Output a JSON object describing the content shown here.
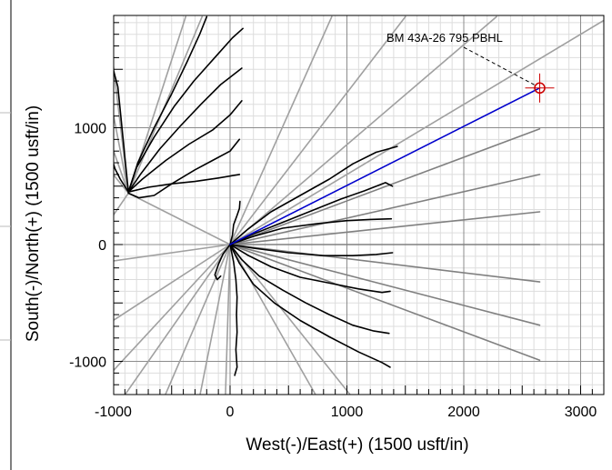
{
  "chart_data": {
    "type": "line",
    "title": "",
    "xlabel": "West(-)/East(+) (1500 usft/in)",
    "ylabel": "South(-)/North(+) (1500 usft/in)",
    "xlim": [
      -1000,
      3200
    ],
    "ylim": [
      -1300,
      1950
    ],
    "x_ticks": [
      -1000,
      0,
      1000,
      2000,
      3000
    ],
    "y_ticks": [
      -1000,
      0,
      1000
    ],
    "x_tick_labels": [
      "-1000",
      "0",
      "1000",
      "2000",
      "3000"
    ],
    "y_tick_labels": [
      "-1000",
      "0",
      "1000"
    ],
    "grid": "major and minor",
    "colors": {
      "target": "#cc0000",
      "planned": "#0000cc",
      "offset_wells": "#000000",
      "projections_light": "#a0a0a0",
      "projections_dark": "#808080",
      "grid_major": "#8c8c8c",
      "grid_minor": "#dddddd"
    },
    "target": {
      "label": "BM 43A-26 795 PBHL",
      "x": 2650,
      "y": 1340
    },
    "planned_well": {
      "x": [
        0,
        2650
      ],
      "y": [
        0,
        1340
      ]
    },
    "projection_lines_light": [
      {
        "x": [
          0,
          3200
        ],
        "y": [
          0,
          1920
        ]
      },
      {
        "x": [
          0,
          2280
        ],
        "y": [
          0,
          1950
        ]
      },
      {
        "x": [
          0,
          1500
        ],
        "y": [
          0,
          1950
        ]
      },
      {
        "x": [
          0,
          870
        ],
        "y": [
          0,
          1950
        ]
      },
      {
        "x": [
          0,
          -1000
        ],
        "y": [
          0,
          -140
        ]
      },
      {
        "x": [
          0,
          -1000
        ],
        "y": [
          0,
          -650
        ]
      },
      {
        "x": [
          0,
          -1000
        ],
        "y": [
          0,
          -1080
        ]
      },
      {
        "x": [
          0,
          -910
        ],
        "y": [
          0,
          -1300
        ]
      },
      {
        "x": [
          0,
          -560
        ],
        "y": [
          0,
          -1300
        ]
      },
      {
        "x": [
          0,
          -260
        ],
        "y": [
          0,
          -1300
        ]
      },
      {
        "x": [
          0,
          -40
        ],
        "y": [
          0,
          -1300
        ]
      },
      {
        "x": [
          0,
          740
        ],
        "y": [
          0,
          -1300
        ]
      },
      {
        "x": [
          0,
          1040
        ],
        "y": [
          0,
          -1300
        ]
      },
      {
        "x": [
          0,
          -870
        ],
        "y": [
          0,
          440
        ]
      },
      {
        "x": [
          -870,
          -1000
        ],
        "y": [
          440,
          1540
        ]
      },
      {
        "x": [
          -870,
          -1000
        ],
        "y": [
          440,
          1120
        ]
      },
      {
        "x": [
          -870,
          -1000
        ],
        "y": [
          440,
          810
        ]
      },
      {
        "x": [
          -870,
          -1000
        ],
        "y": [
          440,
          600
        ]
      },
      {
        "x": [
          -870,
          -1000
        ],
        "y": [
          440,
          250
        ]
      },
      {
        "x": [
          -870,
          -380
        ],
        "y": [
          440,
          1950
        ]
      },
      {
        "x": [
          -870,
          -240
        ],
        "y": [
          440,
          1950
        ]
      }
    ],
    "projection_lines_dark": [
      {
        "x": [
          0,
          2650
        ],
        "y": [
          0,
          990
        ]
      },
      {
        "x": [
          0,
          2650
        ],
        "y": [
          0,
          600
        ]
      },
      {
        "x": [
          0,
          2650
        ],
        "y": [
          0,
          280
        ]
      },
      {
        "x": [
          0,
          2650
        ],
        "y": [
          0,
          0
        ]
      },
      {
        "x": [
          0,
          2650
        ],
        "y": [
          0,
          -320
        ]
      },
      {
        "x": [
          0,
          2650
        ],
        "y": [
          0,
          -690
        ]
      },
      {
        "x": [
          0,
          2650
        ],
        "y": [
          0,
          -990
        ]
      }
    ],
    "offset_wells": [
      {
        "x": [
          0,
          150,
          350,
          600,
          850,
          1050,
          1250,
          1430
        ],
        "y": [
          0,
          130,
          280,
          420,
          560,
          690,
          790,
          840
        ]
      },
      {
        "x": [
          0,
          200,
          450,
          700,
          950,
          1150,
          1330,
          1390
        ],
        "y": [
          0,
          90,
          190,
          290,
          390,
          460,
          530,
          500
        ]
      },
      {
        "x": [
          0,
          200,
          450,
          750,
          1000,
          1200,
          1380
        ],
        "y": [
          0,
          70,
          140,
          180,
          205,
          215,
          220
        ]
      },
      {
        "x": [
          0,
          200,
          500,
          800,
          1050,
          1250,
          1390
        ],
        "y": [
          0,
          -30,
          -70,
          -95,
          -95,
          -85,
          -70
        ]
      },
      {
        "x": [
          0,
          150,
          350,
          600,
          850,
          1100,
          1300,
          1370
        ],
        "y": [
          0,
          -90,
          -190,
          -280,
          -330,
          -380,
          -410,
          -400
        ]
      },
      {
        "x": [
          0,
          100,
          250,
          450,
          650,
          850,
          1050,
          1230,
          1360
        ],
        "y": [
          0,
          -130,
          -270,
          -390,
          -500,
          -600,
          -690,
          -740,
          -760
        ]
      },
      {
        "x": [
          0,
          80,
          200,
          380,
          600,
          850,
          1100,
          1300,
          1370
        ],
        "y": [
          0,
          -160,
          -340,
          -500,
          -650,
          -790,
          -920,
          -1010,
          -1050
        ]
      },
      {
        "x": [
          0,
          30,
          50,
          60,
          55,
          60,
          50,
          60,
          40
        ],
        "y": [
          0,
          -150,
          -300,
          -450,
          -600,
          -750,
          -900,
          -1050,
          -1120
        ]
      },
      {
        "x": [
          0,
          20,
          30,
          60,
          80,
          85
        ],
        "y": [
          0,
          80,
          170,
          250,
          310,
          370
        ]
      },
      {
        "x": [
          0,
          -60,
          -100,
          -130,
          -110,
          -80
        ],
        "y": [
          0,
          -80,
          -170,
          -260,
          -300,
          -270
        ]
      },
      {
        "x": [
          -870,
          -700,
          -500,
          -300,
          -100,
          80
        ],
        "y": [
          450,
          490,
          520,
          540,
          570,
          600
        ]
      },
      {
        "x": [
          -870,
          -780,
          -650,
          -500,
          -300,
          -150,
          0,
          80
        ],
        "y": [
          440,
          400,
          420,
          520,
          640,
          720,
          800,
          900
        ]
      },
      {
        "x": [
          -870,
          -750,
          -550,
          -350,
          -150,
          0,
          100
        ],
        "y": [
          450,
          560,
          720,
          860,
          980,
          1110,
          1230
        ]
      },
      {
        "x": [
          -870,
          -760,
          -600,
          -420,
          -250,
          -80,
          100
        ],
        "y": [
          450,
          610,
          820,
          1020,
          1200,
          1370,
          1510
        ]
      },
      {
        "x": [
          -870,
          -800,
          -650,
          -480,
          -310,
          -140,
          20,
          110
        ],
        "y": [
          450,
          660,
          920,
          1180,
          1400,
          1590,
          1770,
          1850
        ]
      },
      {
        "x": [
          -870,
          -790,
          -650,
          -500,
          -370,
          -260,
          -200
        ],
        "y": [
          450,
          700,
          1000,
          1290,
          1560,
          1800,
          1950
        ]
      },
      {
        "x": [
          -870,
          -900,
          -930,
          -960,
          -1000
        ],
        "y": [
          450,
          750,
          1050,
          1350,
          1500
        ]
      },
      {
        "x": [
          -870,
          -940,
          -985,
          -1000
        ],
        "y": [
          450,
          560,
          650,
          700
        ]
      }
    ]
  }
}
